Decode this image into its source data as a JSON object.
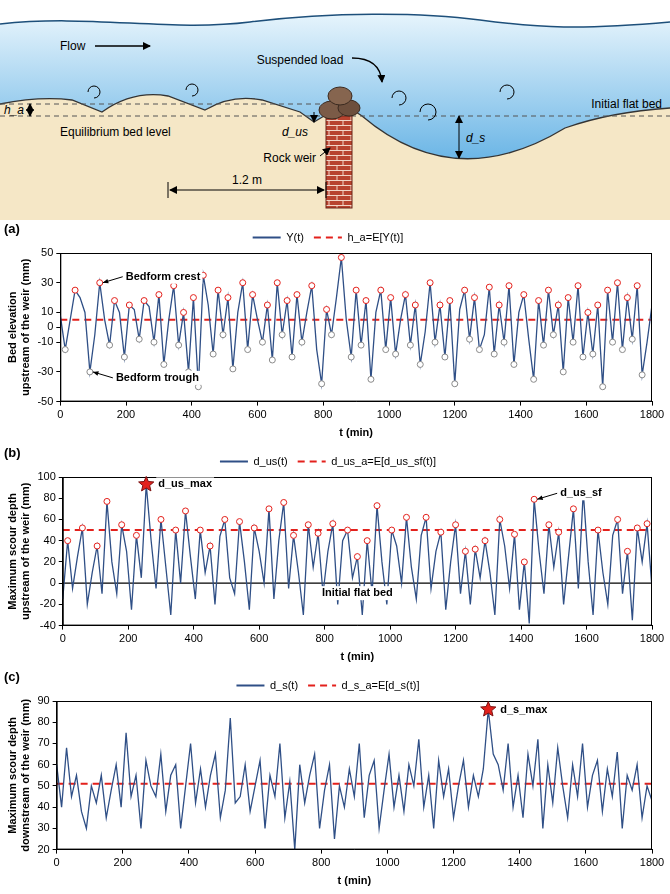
{
  "diagram": {
    "flow": "Flow",
    "suspended_load": "Suspended load",
    "h_a": "h_a",
    "d_us": "d_us",
    "d_s": "d_s",
    "equilibrium_bed_level": "Equilibrium bed level",
    "initial_flat_bed": "Initial flat bed",
    "rock_weir": "Rock weir",
    "distance": "1.2 m"
  },
  "chart_data": [
    {
      "type": "line",
      "panel": "(a)",
      "x_label": "t (min)",
      "y_label": [
        "Bed elevation",
        "upstream of the weir (mm)"
      ],
      "x": [
        0,
        15,
        30,
        45,
        60,
        75,
        90,
        105,
        120,
        135,
        150,
        165,
        180,
        195,
        210,
        225,
        240,
        255,
        270,
        285,
        300,
        315,
        330,
        345,
        360,
        375,
        390,
        405,
        420,
        435,
        450,
        465,
        480,
        495,
        510,
        525,
        540,
        555,
        570,
        585,
        600,
        615,
        630,
        645,
        660,
        675,
        690,
        705,
        720,
        735,
        750,
        765,
        780,
        795,
        810,
        825,
        840,
        855,
        870,
        885,
        900,
        915,
        930,
        945,
        960,
        975,
        990,
        1005,
        1020,
        1035,
        1050,
        1065,
        1080,
        1095,
        1110,
        1125,
        1140,
        1155,
        1170,
        1185,
        1200,
        1215,
        1230,
        1245,
        1260,
        1275,
        1290,
        1305,
        1320,
        1335,
        1350,
        1365,
        1380,
        1395,
        1410,
        1425,
        1440,
        1455,
        1470,
        1485,
        1500,
        1515,
        1530,
        1545,
        1560,
        1575,
        1590,
        1605,
        1620,
        1635,
        1650,
        1665,
        1680,
        1695,
        1710,
        1725,
        1740,
        1755,
        1770,
        1785,
        1800
      ],
      "series": [
        {
          "name": "Y(t)",
          "color": "#2f4f86",
          "marker": "extrema",
          "values": [
            8,
            -15,
            5,
            25,
            20,
            10,
            -30,
            -5,
            30,
            5,
            -12,
            18,
            10,
            -20,
            15,
            12,
            -8,
            18,
            14,
            -10,
            22,
            -25,
            5,
            28,
            -12,
            10,
            -30,
            20,
            -40,
            35,
            15,
            -18,
            25,
            -5,
            20,
            -28,
            10,
            30,
            -15,
            22,
            5,
            -10,
            15,
            -22,
            30,
            -5,
            18,
            -20,
            22,
            -10,
            10,
            28,
            -15,
            -38,
            12,
            -5,
            20,
            47,
            5,
            -20,
            25,
            -12,
            18,
            -35,
            10,
            25,
            -15,
            20,
            -18,
            5,
            22,
            -12,
            15,
            -25,
            -3,
            30,
            -10,
            15,
            -20,
            18,
            -38,
            12,
            25,
            -8,
            20,
            -15,
            -5,
            27,
            -18,
            15,
            -10,
            28,
            -25,
            10,
            22,
            -8,
            -35,
            18,
            -12,
            25,
            -5,
            15,
            -30,
            20,
            -10,
            28,
            -20,
            10,
            -18,
            15,
            -40,
            25,
            -10,
            30,
            -15,
            20,
            -8,
            28,
            -32,
            -10,
            15
          ]
        },
        {
          "name": "h_a=E[Y(t)]",
          "color": "#e3211c",
          "line_style": "dashed",
          "x": [
            0,
            1800
          ],
          "values": [
            5,
            5
          ]
        }
      ],
      "xlim": [
        0,
        1800
      ],
      "xticks": [
        0,
        200,
        400,
        600,
        800,
        1000,
        1200,
        1400,
        1600,
        1800
      ],
      "ylim": [
        -50,
        50
      ],
      "yticks": [
        -50,
        -30,
        -10,
        0,
        10,
        30,
        50
      ],
      "grid": false,
      "legend": "top",
      "annotations": [
        {
          "text": "Bedform crest",
          "x": 120,
          "y": 30
        },
        {
          "text": "Bedform trough",
          "x": 90,
          "y": -30
        }
      ]
    },
    {
      "type": "line",
      "panel": "(b)",
      "x_label": "t (min)",
      "y_label": [
        "Maximum scour depth",
        "upstream of the weir (mm)"
      ],
      "x": [
        0,
        15,
        30,
        45,
        60,
        75,
        90,
        105,
        120,
        135,
        150,
        165,
        180,
        195,
        210,
        225,
        240,
        255,
        270,
        285,
        300,
        315,
        330,
        345,
        360,
        375,
        390,
        405,
        420,
        435,
        450,
        465,
        480,
        495,
        510,
        525,
        540,
        555,
        570,
        585,
        600,
        615,
        630,
        645,
        660,
        675,
        690,
        705,
        720,
        735,
        750,
        765,
        780,
        795,
        810,
        825,
        840,
        855,
        870,
        885,
        900,
        915,
        930,
        945,
        960,
        975,
        990,
        1005,
        1020,
        1035,
        1050,
        1065,
        1080,
        1095,
        1110,
        1125,
        1140,
        1155,
        1170,
        1185,
        1200,
        1215,
        1230,
        1245,
        1260,
        1275,
        1290,
        1305,
        1320,
        1335,
        1350,
        1365,
        1380,
        1395,
        1410,
        1425,
        1440,
        1455,
        1470,
        1485,
        1500,
        1515,
        1530,
        1545,
        1560,
        1575,
        1590,
        1605,
        1620,
        1635,
        1650,
        1665,
        1680,
        1695,
        1710,
        1725,
        1740,
        1755,
        1770,
        1785,
        1800
      ],
      "series": [
        {
          "name": "d_us(t)",
          "color": "#2f4f86",
          "marker": "peaks",
          "values": [
            -15,
            40,
            -5,
            25,
            52,
            -20,
            10,
            35,
            -10,
            77,
            20,
            -10,
            55,
            30,
            -25,
            45,
            5,
            93,
            40,
            -5,
            60,
            15,
            -30,
            50,
            0,
            68,
            25,
            -15,
            50,
            10,
            35,
            -20,
            44,
            60,
            5,
            -10,
            58,
            20,
            -25,
            52,
            30,
            0,
            70,
            -15,
            40,
            76,
            -5,
            45,
            10,
            -30,
            55,
            15,
            47,
            -10,
            30,
            56,
            -20,
            40,
            50,
            5,
            25,
            -30,
            40,
            -10,
            73,
            20,
            -20,
            50,
            35,
            0,
            62,
            15,
            -15,
            45,
            62,
            -5,
            30,
            48,
            -25,
            20,
            55,
            -10,
            30,
            -20,
            32,
            5,
            40,
            10,
            -30,
            60,
            35,
            -5,
            46,
            -25,
            20,
            -38,
            79,
            30,
            -10,
            55,
            15,
            48,
            -20,
            25,
            70,
            -5,
            86,
            20,
            -30,
            50,
            10,
            -20,
            45,
            60,
            -10,
            30,
            -35,
            52,
            20,
            56,
            -5
          ]
        },
        {
          "name": "d_us_a=E[d_us_sf(t)]",
          "color": "#e3211c",
          "line_style": "dashed",
          "x": [
            0,
            1800
          ],
          "values": [
            50,
            50
          ]
        },
        {
          "name": "Initial flat bed",
          "type": "reference",
          "color": "#000000",
          "x": [
            0,
            1800
          ],
          "values": [
            0,
            0
          ]
        }
      ],
      "xlim": [
        0,
        1800
      ],
      "xticks": [
        0,
        200,
        400,
        600,
        800,
        1000,
        1200,
        1400,
        1600,
        1800
      ],
      "ylim": [
        -40,
        100
      ],
      "yticks": [
        -40,
        -20,
        0,
        20,
        40,
        60,
        80,
        100
      ],
      "grid": false,
      "legend": "top",
      "annotations": [
        {
          "text": "d_us_max",
          "x": 255,
          "y": 93,
          "marker": "star"
        },
        {
          "text": "d_us_sf",
          "x": 1440,
          "y": 79
        }
      ]
    },
    {
      "type": "line",
      "panel": "(c)",
      "x_label": "t (min)",
      "y_label": [
        "Maximum scour depth",
        "downstream of the weir (mm)"
      ],
      "x": [
        0,
        15,
        30,
        45,
        60,
        75,
        90,
        105,
        120,
        135,
        150,
        165,
        180,
        195,
        210,
        225,
        240,
        255,
        270,
        285,
        300,
        315,
        330,
        345,
        360,
        375,
        390,
        405,
        420,
        435,
        450,
        465,
        480,
        495,
        510,
        525,
        540,
        555,
        570,
        585,
        600,
        615,
        630,
        645,
        660,
        675,
        690,
        705,
        720,
        735,
        750,
        765,
        780,
        795,
        810,
        825,
        840,
        855,
        870,
        885,
        900,
        915,
        930,
        945,
        960,
        975,
        990,
        1005,
        1020,
        1035,
        1050,
        1065,
        1080,
        1095,
        1110,
        1125,
        1140,
        1155,
        1170,
        1185,
        1200,
        1215,
        1230,
        1245,
        1260,
        1275,
        1290,
        1305,
        1320,
        1335,
        1350,
        1365,
        1380,
        1395,
        1410,
        1425,
        1440,
        1455,
        1470,
        1485,
        1500,
        1515,
        1530,
        1545,
        1560,
        1575,
        1590,
        1605,
        1620,
        1635,
        1650,
        1665,
        1680,
        1695,
        1710,
        1725,
        1740,
        1755,
        1770,
        1785,
        1800
      ],
      "series": [
        {
          "name": "d_s(t)",
          "color": "#2f4f86",
          "values": [
            60,
            40,
            68,
            45,
            55,
            38,
            30,
            50,
            42,
            55,
            35,
            48,
            60,
            40,
            75,
            45,
            55,
            30,
            62,
            50,
            45,
            65,
            38,
            55,
            60,
            30,
            50,
            70,
            42,
            58,
            40,
            55,
            65,
            35,
            48,
            82,
            42,
            45,
            60,
            38,
            50,
            62,
            30,
            55,
            45,
            70,
            35,
            52,
            20,
            60,
            42,
            55,
            65,
            30,
            48,
            60,
            25,
            50,
            40,
            58,
            45,
            70,
            35,
            55,
            62,
            30,
            48,
            65,
            40,
            55,
            38,
            60,
            50,
            72,
            40,
            55,
            30,
            62,
            45,
            58,
            35,
            50,
            62,
            40,
            55,
            45,
            58,
            86,
            65,
            60,
            48,
            70,
            40,
            55,
            35,
            65,
            50,
            72,
            30,
            60,
            42,
            68,
            50,
            35,
            60,
            45,
            70,
            40,
            55,
            62,
            38,
            58,
            45,
            66,
            30,
            55,
            48,
            60,
            35,
            50,
            43
          ]
        },
        {
          "name": "d_s_a=E[d_s(t)]",
          "color": "#e3211c",
          "line_style": "dashed",
          "x": [
            0,
            1800
          ],
          "values": [
            51,
            51
          ]
        }
      ],
      "xlim": [
        0,
        1800
      ],
      "xticks": [
        0,
        200,
        400,
        600,
        800,
        1000,
        1200,
        1400,
        1600,
        1800
      ],
      "ylim": [
        20,
        90
      ],
      "yticks": [
        20,
        30,
        40,
        50,
        60,
        70,
        80,
        90
      ],
      "grid": false,
      "legend": "top",
      "annotations": [
        {
          "text": "d_s_max",
          "x": 1305,
          "y": 86,
          "marker": "star"
        }
      ]
    }
  ]
}
